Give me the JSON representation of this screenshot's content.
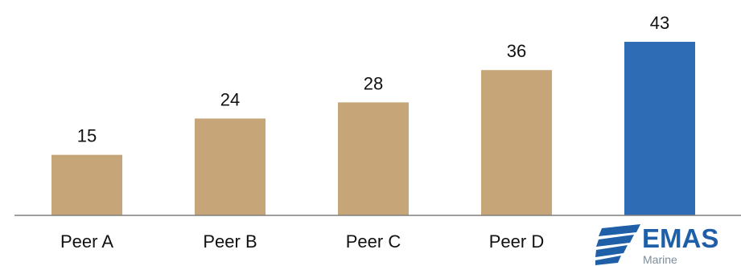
{
  "chart_data": {
    "type": "bar",
    "categories": [
      "Peer A",
      "Peer B",
      "Peer C",
      "Peer D",
      "EMAS Marine"
    ],
    "values": [
      15,
      24,
      28,
      36,
      43
    ],
    "data_labels": [
      "15",
      "24",
      "28",
      "36",
      "43"
    ],
    "title": "",
    "xlabel": "",
    "ylabel": "",
    "ylim": [
      0,
      45
    ],
    "grid": false,
    "legend": "none",
    "colors": {
      "peer_bar": "#c6a678",
      "highlight_bar": "#2e6cb5",
      "axis": "#7f7f7f",
      "text": "#111111"
    },
    "highlight_category_index": 4
  },
  "logo": {
    "icon": "emas-wave-logo-icon",
    "name": "EMAS",
    "sub": "Marine",
    "color": "#1f5fa8",
    "sub_color": "#7f8c99"
  }
}
